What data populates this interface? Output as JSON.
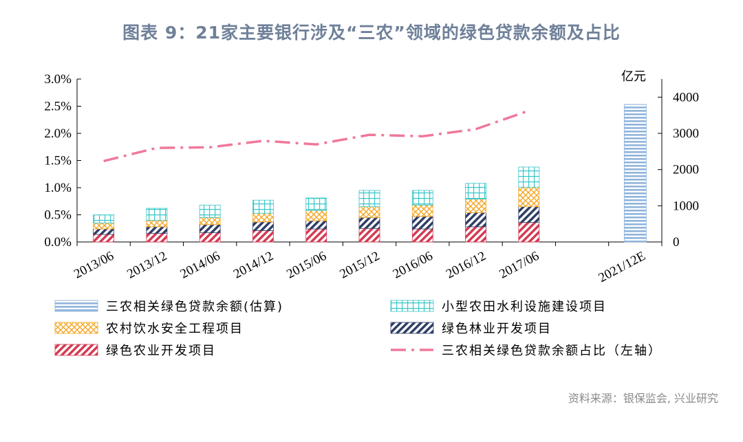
{
  "title": "图表 9：21家主要银行涉及“三农”领域的绿色贷款余额及占比",
  "source": "资料来源：银保监会, 兴业研究",
  "chart_data": {
    "type": "bar",
    "stacked": true,
    "categories": [
      "2013/06",
      "2013/12",
      "2014/06",
      "2014/12",
      "2015/06",
      "2015/12",
      "2016/06",
      "2016/12",
      "2017/06",
      "",
      "2021/12E"
    ],
    "x_tick_labels": [
      "2013/06",
      "2013/12",
      "2014/06",
      "2014/12",
      "2015/06",
      "2015/12",
      "2016/06",
      "2016/12",
      "2017/06",
      "2021/12E"
    ],
    "left_axis": {
      "ylim": [
        0,
        3.0
      ],
      "ticks": [
        "0.0%",
        "0.5%",
        "1.0%",
        "1.5%",
        "2.0%",
        "2.5%",
        "3.0%"
      ]
    },
    "right_axis": {
      "unit": "亿元",
      "ylim": [
        0,
        4500
      ],
      "ticks": [
        "0",
        "1000",
        "2000",
        "3000",
        "4000"
      ]
    },
    "series": [
      {
        "name": "绿色农业开发项目",
        "axis": "left",
        "pattern": "red-diag",
        "color": "#d43a52",
        "values": [
          0.14,
          0.16,
          0.17,
          0.21,
          0.24,
          0.25,
          0.24,
          0.28,
          0.36,
          null,
          null
        ]
      },
      {
        "name": "绿色林业开发项目",
        "axis": "left",
        "pattern": "navy-diag",
        "color": "#2f3e66",
        "values": [
          0.1,
          0.12,
          0.15,
          0.16,
          0.15,
          0.2,
          0.23,
          0.26,
          0.29,
          null,
          null
        ]
      },
      {
        "name": "农村饮水安全工程项目",
        "axis": "left",
        "pattern": "orange-cross",
        "color": "#f5a623",
        "values": [
          0.11,
          0.12,
          0.13,
          0.16,
          0.19,
          0.2,
          0.21,
          0.25,
          0.36,
          null,
          null
        ]
      },
      {
        "name": "小型农田水利设施建设项目",
        "axis": "left",
        "pattern": "cyan-grid",
        "color": "#39c6c9",
        "values": [
          0.15,
          0.22,
          0.23,
          0.24,
          0.23,
          0.3,
          0.27,
          0.29,
          0.37,
          null,
          null
        ]
      },
      {
        "name": "三农相关绿色贷款余额(估算)",
        "axis": "right",
        "pattern": "blue-hline",
        "color": "#8fb4dc",
        "values": [
          null,
          null,
          null,
          null,
          null,
          null,
          null,
          null,
          null,
          null,
          3800
        ]
      },
      {
        "name": "三农相关绿色贷款余额占比（左轴）",
        "axis": "left",
        "type": "line",
        "style": "dash-dot",
        "color": "#f0789a",
        "values": [
          2.28,
          2.65,
          2.67,
          2.85,
          2.75,
          3.02,
          2.98,
          3.18,
          3.7,
          null,
          null
        ],
        "note_axis": "right"
      }
    ],
    "legend": [
      [
        "三农相关绿色贷款余额(估算)",
        "小型农田水利设施建设项目"
      ],
      [
        "农村饮水安全工程项目",
        "绿色林业开发项目"
      ],
      [
        "绿色农业开发项目",
        "三农相关绿色贷款余额占比（左轴）"
      ]
    ],
    "legend_position": "bottom",
    "grid": false
  }
}
